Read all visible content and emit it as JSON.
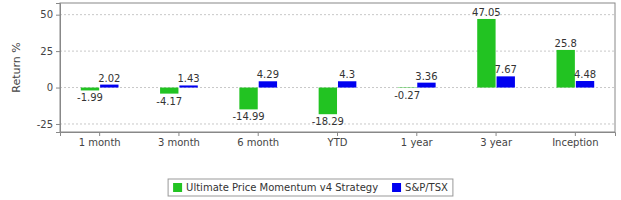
{
  "chart_data": {
    "type": "bar",
    "y_label": "Return %",
    "categories": [
      "1 month",
      "3 month",
      "6 month",
      "YTD",
      "1 year",
      "3 year",
      "Inception"
    ],
    "series": [
      {
        "name": "Ultimate Price Momentum v4 Strategy",
        "color": "#22c322",
        "values": [
          -1.99,
          -4.17,
          -14.99,
          -18.29,
          -0.27,
          47.05,
          25.8
        ]
      },
      {
        "name": "S&P/TSX",
        "color": "#0000f0",
        "values": [
          2.02,
          1.43,
          4.29,
          4.3,
          3.36,
          7.67,
          4.48
        ]
      }
    ],
    "ylim": [
      -30.5,
      58
    ],
    "yticks": [
      -25,
      0,
      25,
      50
    ],
    "grid": true,
    "data_labels": true,
    "legend": "bottom"
  }
}
